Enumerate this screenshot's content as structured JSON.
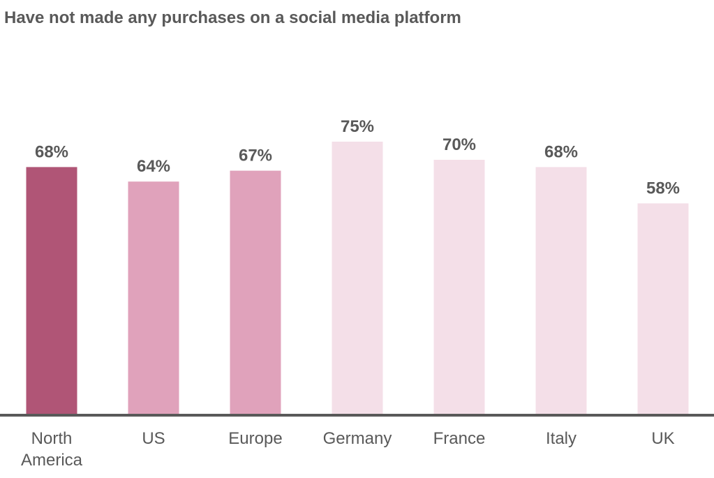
{
  "chart_data": {
    "type": "bar",
    "title": "Have not made any purchases on a social media platform",
    "categories": [
      [
        "North",
        "America"
      ],
      [
        "US"
      ],
      [
        "Europe"
      ],
      [
        "Germany"
      ],
      [
        "France"
      ],
      [
        "Italy"
      ],
      [
        "UK"
      ]
    ],
    "values": [
      68,
      64,
      67,
      75,
      70,
      68,
      58
    ],
    "value_labels": [
      "68%",
      "64%",
      "67%",
      "75%",
      "70%",
      "68%",
      "58%"
    ],
    "bar_colors": [
      "#b05576",
      "#e0a2bb",
      "#e0a2bb",
      "#f4dfe8",
      "#f4dfe8",
      "#f4dfe8",
      "#f4dfe8"
    ],
    "axis_color": "#595959",
    "xlabel": "",
    "ylabel": "",
    "ylim": [
      0,
      100
    ],
    "grid": false,
    "legend": "none"
  }
}
